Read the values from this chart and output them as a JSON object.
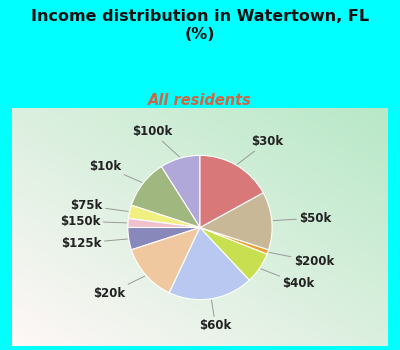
{
  "title": "Income distribution in Watertown, FL\n(%)",
  "subtitle": "All residents",
  "title_color": "#111111",
  "subtitle_color": "#cc6644",
  "bg_top_color": "#00ffff",
  "labels": [
    "$100k",
    "$10k",
    "$75k",
    "$150k",
    "$125k",
    "$20k",
    "$60k",
    "$40k",
    "$200k",
    "$50k",
    "$30k"
  ],
  "values": [
    9,
    11,
    3,
    2,
    5,
    13,
    19,
    7,
    1,
    13,
    17
  ],
  "colors": [
    "#b0a8d8",
    "#a0b880",
    "#f0f080",
    "#f0c0cc",
    "#8888bb",
    "#f0c8a0",
    "#b8c8f0",
    "#c8e050",
    "#f0a030",
    "#c8b898",
    "#d87878"
  ],
  "label_fontsize": 8.5,
  "startangle": 90
}
